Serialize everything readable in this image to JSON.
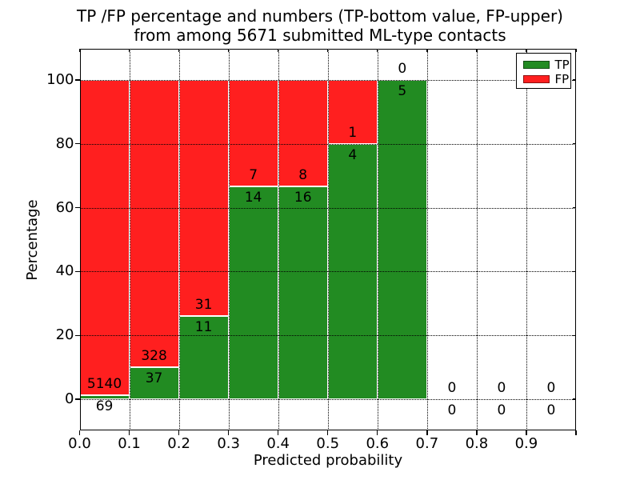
{
  "chart_data": {
    "type": "bar",
    "subtype": "stacked-percentage-histogram",
    "title_line1": "TP /FP percentage and numbers (TP-bottom value, FP-upper)",
    "title_line2": "from among 5671 submitted ML-type contacts",
    "xlabel": "Predicted probability",
    "ylabel": "Percentage",
    "total_contacts": 5671,
    "x_tick_labels": [
      "0.0",
      "0.1",
      "0.2",
      "0.3",
      "0.4",
      "0.5",
      "0.6",
      "0.7",
      "0.8",
      "0.9"
    ],
    "y_ticks": [
      0,
      20,
      40,
      60,
      80,
      100
    ],
    "xlim": [
      0.0,
      1.0
    ],
    "ylim": [
      -9.6,
      109.6
    ],
    "grid": "dotted",
    "legend": {
      "position": "upper-right",
      "entries": [
        {
          "label": "TP",
          "color": "#228b22"
        },
        {
          "label": "FP",
          "color": "#ff1f1f"
        }
      ]
    },
    "colors": {
      "tp": "#228b22",
      "fp": "#ff1f1f",
      "bar_edge": "#ffffff",
      "grid": "#000000",
      "text": "#000000",
      "background": "#ffffff"
    },
    "bins": [
      {
        "x_start": 0.0,
        "x_end": 0.1,
        "tp": 69,
        "fp": 5140
      },
      {
        "x_start": 0.1,
        "x_end": 0.2,
        "tp": 37,
        "fp": 328
      },
      {
        "x_start": 0.2,
        "x_end": 0.3,
        "tp": 11,
        "fp": 31
      },
      {
        "x_start": 0.3,
        "x_end": 0.4,
        "tp": 14,
        "fp": 7
      },
      {
        "x_start": 0.4,
        "x_end": 0.5,
        "tp": 16,
        "fp": 8
      },
      {
        "x_start": 0.5,
        "x_end": 0.6,
        "tp": 4,
        "fp": 1
      },
      {
        "x_start": 0.6,
        "x_end": 0.7,
        "tp": 5,
        "fp": 0
      },
      {
        "x_start": 0.7,
        "x_end": 0.8,
        "tp": 0,
        "fp": 0
      },
      {
        "x_start": 0.8,
        "x_end": 0.9,
        "tp": 0,
        "fp": 0
      },
      {
        "x_start": 0.9,
        "x_end": 1.0,
        "tp": 0,
        "fp": 0
      }
    ]
  }
}
